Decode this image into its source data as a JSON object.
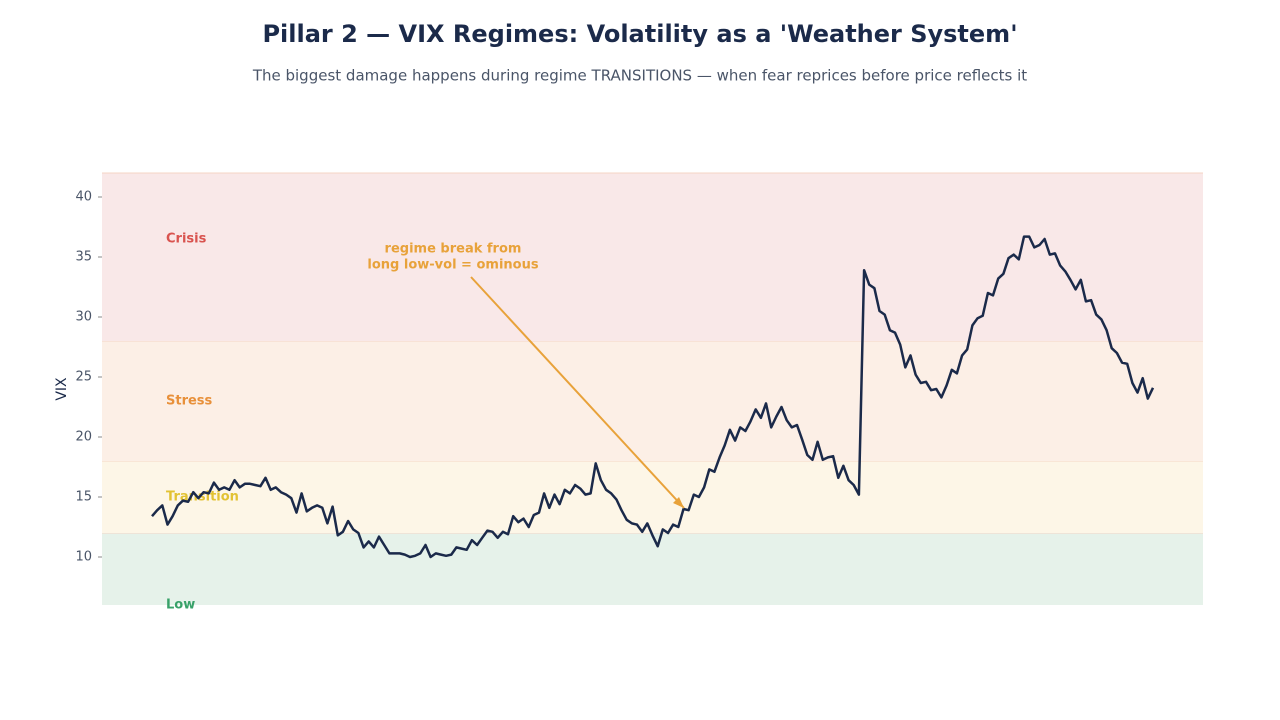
{
  "chart_data": {
    "type": "line",
    "title": "Pillar 2 — VIX Regimes: Volatility as a 'Weather System'",
    "subtitle": "The biggest damage happens during regime TRANSITIONS — when fear reprices before price reflects it",
    "y_label": "VIX",
    "ylim": [
      6,
      42
    ],
    "yticks": [
      10,
      15,
      20,
      25,
      30,
      35,
      40
    ],
    "bands": [
      {
        "name": "Low",
        "range": [
          6,
          12
        ],
        "color": "#e6f2ea",
        "label_color": "#38a169"
      },
      {
        "name": "Transition",
        "range": [
          12,
          18
        ],
        "color": "#fdf6e7",
        "label_color": "#e2c233"
      },
      {
        "name": "Stress",
        "range": [
          18,
          28
        ],
        "color": "#fcefe6",
        "label_color": "#e8903a"
      },
      {
        "name": "Crisis",
        "range": [
          28,
          42
        ],
        "color": "#f9e8e8",
        "label_color": "#d9534f"
      }
    ],
    "annotation": [
      "regime break from",
      "long low-vol = ominous"
    ],
    "series": [
      {
        "name": "VIX",
        "color": "#1b2a4a",
        "values": [
          13.4,
          13.9,
          14.3,
          12.7,
          13.4,
          14.3,
          14.7,
          14.6,
          15.4,
          14.9,
          15.4,
          15.3,
          16.2,
          15.6,
          15.8,
          15.6,
          16.4,
          15.8,
          16.1,
          16.1,
          16.0,
          15.9,
          16.6,
          15.6,
          15.8,
          15.4,
          15.2,
          14.9,
          13.7,
          15.3,
          13.8,
          14.1,
          14.3,
          14.1,
          12.8,
          14.2,
          11.8,
          12.1,
          13.0,
          12.3,
          12.0,
          10.8,
          11.3,
          10.8,
          11.7,
          11.0,
          10.3,
          10.3,
          10.3,
          10.2,
          10.0,
          10.1,
          10.3,
          11.0,
          10.0,
          10.3,
          10.2,
          10.1,
          10.2,
          10.8,
          10.7,
          10.6,
          11.4,
          11.0,
          11.6,
          12.2,
          12.1,
          11.6,
          12.1,
          11.9,
          13.4,
          12.9,
          13.2,
          12.5,
          13.5,
          13.7,
          15.3,
          14.1,
          15.2,
          14.4,
          15.6,
          15.3,
          16.0,
          15.7,
          15.2,
          15.3,
          17.8,
          16.4,
          15.6,
          15.3,
          14.8,
          13.9,
          13.1,
          12.8,
          12.7,
          12.1,
          12.8,
          11.8,
          10.9,
          12.3,
          12.0,
          12.7,
          12.5,
          14.0,
          13.9,
          15.2,
          15.0,
          15.8,
          17.3,
          17.1,
          18.3,
          19.3,
          20.6,
          19.7,
          20.8,
          20.5,
          21.3,
          22.3,
          21.6,
          22.8,
          20.8,
          21.7,
          22.5,
          21.4,
          20.8,
          21.0,
          19.8,
          18.5,
          18.1,
          19.6,
          18.1,
          18.3,
          18.4,
          16.6,
          17.6,
          16.4,
          16.0,
          15.2,
          33.9,
          32.7,
          32.4,
          30.5,
          30.2,
          28.9,
          28.7,
          27.7,
          25.8,
          26.8,
          25.2,
          24.5,
          24.6,
          23.9,
          24.0,
          23.3,
          24.3,
          25.6,
          25.3,
          26.8,
          27.3,
          29.3,
          29.9,
          30.1,
          32.0,
          31.8,
          33.2,
          33.6,
          34.9,
          35.2,
          34.8,
          36.7,
          36.7,
          35.8,
          36.0,
          36.5,
          35.2,
          35.3,
          34.3,
          33.8,
          33.1,
          32.3,
          33.1,
          31.3,
          31.4,
          30.2,
          29.8,
          28.9,
          27.4,
          27.0,
          26.2,
          26.1,
          24.5,
          23.7,
          24.9,
          23.2,
          24.1
        ]
      }
    ]
  }
}
